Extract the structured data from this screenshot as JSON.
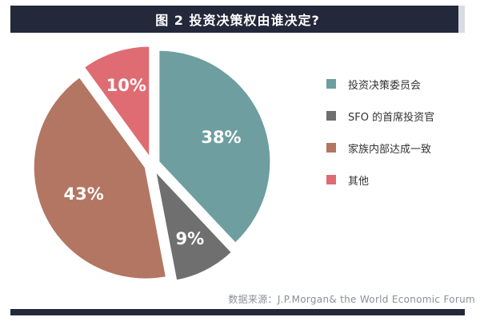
{
  "title": "图 2 投资决策权由谁决定?",
  "source": "数据来源：J.P.Morgan& the World Economic Forum",
  "chart_data": {
    "type": "pie",
    "title": "图 2 投资决策权由谁决定?",
    "categories": [
      "投资决策委员会",
      "SFO 的首席投资官",
      "家族内部达成一致",
      "其他"
    ],
    "values": [
      38,
      9,
      43,
      10
    ],
    "data_labels": [
      "38%",
      "9%",
      "43%",
      "10%"
    ],
    "colors": [
      "#6e9e9f",
      "#6f6f6f",
      "#b27662",
      "#df6c73"
    ],
    "legend_position": "right",
    "exploded": true,
    "start": "12 o'clock, clockwise"
  }
}
